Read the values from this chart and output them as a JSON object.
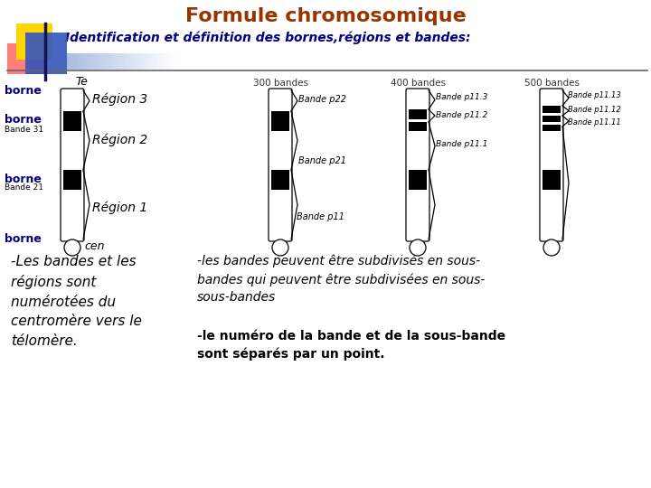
{
  "title": "Formule chromosomique",
  "title_color": "#993300",
  "subtitle": "Identification et définition des bornes,régions et bandes:",
  "subtitle_color": "#000080",
  "bg_color": "#FFFFFF",
  "col_headers": [
    "300 bandes",
    "400 bandes",
    "500 bandes"
  ],
  "te_label": "Te",
  "cen_label": "cen",
  "borne_color": "#000080",
  "region_labels": [
    "Région 3",
    "Région 2",
    "Région 1"
  ],
  "chrom2_bands": [
    "Bande p22",
    "Bande p21",
    "Bande p11"
  ],
  "chrom3_bands": [
    "Bande p11.3",
    "Bande p11.2",
    "Bande p11.1"
  ],
  "chrom4_bands": [
    "Bande p11.13",
    "Bande p11.12",
    "Bande p11.11"
  ],
  "bottom_left": "-Les bandes et les\nrégions sont\nnumérotées du\ncentromère vers le\ntélomère.",
  "bottom_mid1": "-les bandes peuvent être subdivisés en sous-\nbandes qui peuvent être subdivisées en sous-\nsous-bandes",
  "bottom_mid2": "-le numéro de la bande et de la sous-bande\nsont séparés par un point."
}
